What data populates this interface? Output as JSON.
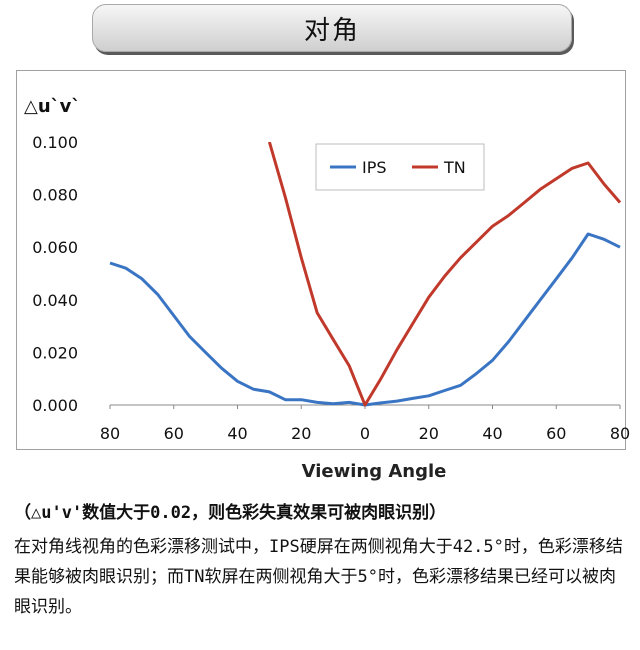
{
  "banner": {
    "title": "对角"
  },
  "chart_data": {
    "type": "line",
    "ylabel": "△u`v`",
    "xlabel": "Viewing Angle",
    "x_tick_labels": [
      "80",
      "60",
      "40",
      "20",
      "0",
      "20",
      "40",
      "60",
      "80"
    ],
    "y_tick_labels": [
      "0.000",
      "0.020",
      "0.040",
      "0.060",
      "0.080",
      "0.100"
    ],
    "ylim": [
      0,
      0.1
    ],
    "xlim": [
      -80,
      80
    ],
    "legend_position": "top-center",
    "series": [
      {
        "name": "IPS",
        "color": "#3a75c4",
        "x": [
          -80,
          -75,
          -70,
          -65,
          -60,
          -55,
          -50,
          -45,
          -40,
          -35,
          -30,
          -25,
          -20,
          -15,
          -10,
          -5,
          0,
          5,
          10,
          15,
          20,
          25,
          30,
          35,
          40,
          45,
          50,
          55,
          60,
          65,
          70,
          75,
          80
        ],
        "y": [
          0.054,
          0.052,
          0.048,
          0.042,
          0.034,
          0.026,
          0.02,
          0.014,
          0.009,
          0.006,
          0.005,
          0.002,
          0.002,
          0.001,
          0.0005,
          0.001,
          0.0,
          0.0008,
          0.0015,
          0.0025,
          0.0035,
          0.0055,
          0.0075,
          0.012,
          0.017,
          0.024,
          0.032,
          0.04,
          0.048,
          0.056,
          0.065,
          0.063,
          0.06
        ]
      },
      {
        "name": "TN",
        "color": "#c0392b",
        "x": [
          -30,
          -25,
          -20,
          -15,
          -10,
          -5,
          0,
          5,
          10,
          15,
          20,
          25,
          30,
          35,
          40,
          45,
          50,
          55,
          60,
          65,
          70,
          75,
          80
        ],
        "y": [
          0.1,
          0.079,
          0.056,
          0.035,
          0.025,
          0.015,
          0.0,
          0.01,
          0.021,
          0.031,
          0.041,
          0.049,
          0.056,
          0.062,
          0.068,
          0.072,
          0.077,
          0.082,
          0.086,
          0.09,
          0.092,
          0.084,
          0.077
        ]
      }
    ]
  },
  "notes": {
    "emphasis": "（△u'v'数值大于0.02，则色彩失真效果可被肉眼识别）",
    "body": "在对角线视角的色彩漂移测试中，IPS硬屏在两侧视角大于42.5°时，色彩漂移结果能够被肉眼识别；而TN软屏在两侧视角大于5°时，色彩漂移结果已经可以被肉眼识别。"
  }
}
